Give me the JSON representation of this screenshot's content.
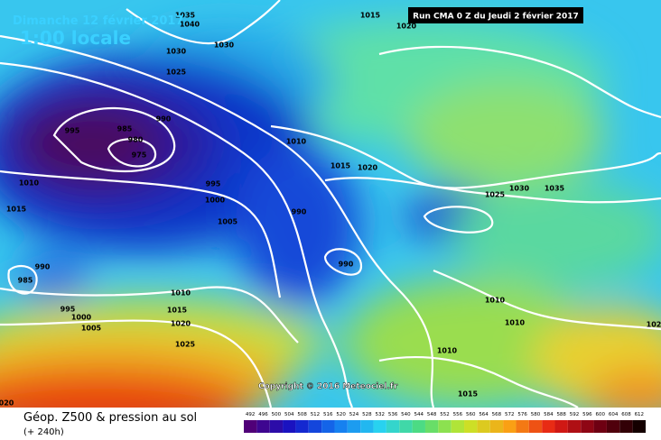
{
  "header": {
    "date": "Dimanche 12 février 2017",
    "time": "1:00 locale",
    "run": "Run CMA 0 Z du Jeudi 2 février 2017"
  },
  "footer": {
    "title": "Géop. Z500 & pression au sol",
    "lead": "(+ 240h)",
    "copyright": "Copyright © 2016 Meteociel.fr"
  },
  "scale": {
    "labels": [
      492,
      496,
      500,
      504,
      508,
      512,
      516,
      520,
      524,
      528,
      532,
      536,
      540,
      544,
      548,
      552,
      556,
      560,
      564,
      568,
      572,
      576,
      580,
      584,
      588,
      592,
      596,
      600,
      604,
      608,
      612
    ]
  },
  "isobars": [
    "1035",
    "1040",
    "1030",
    "1030",
    "1025",
    "1015",
    "1020",
    "990",
    "995",
    "985",
    "980",
    "975",
    "1010",
    "1015",
    "1020",
    "1025",
    "1030",
    "1035",
    "995",
    "1000",
    "1005",
    "990",
    "990",
    "1010",
    "1015",
    "990",
    "985",
    "1010",
    "1015",
    "1020",
    "1025",
    "995",
    "1000",
    "1005",
    "1010",
    "1010",
    "1010",
    "1015",
    "102",
    "020"
  ]
}
